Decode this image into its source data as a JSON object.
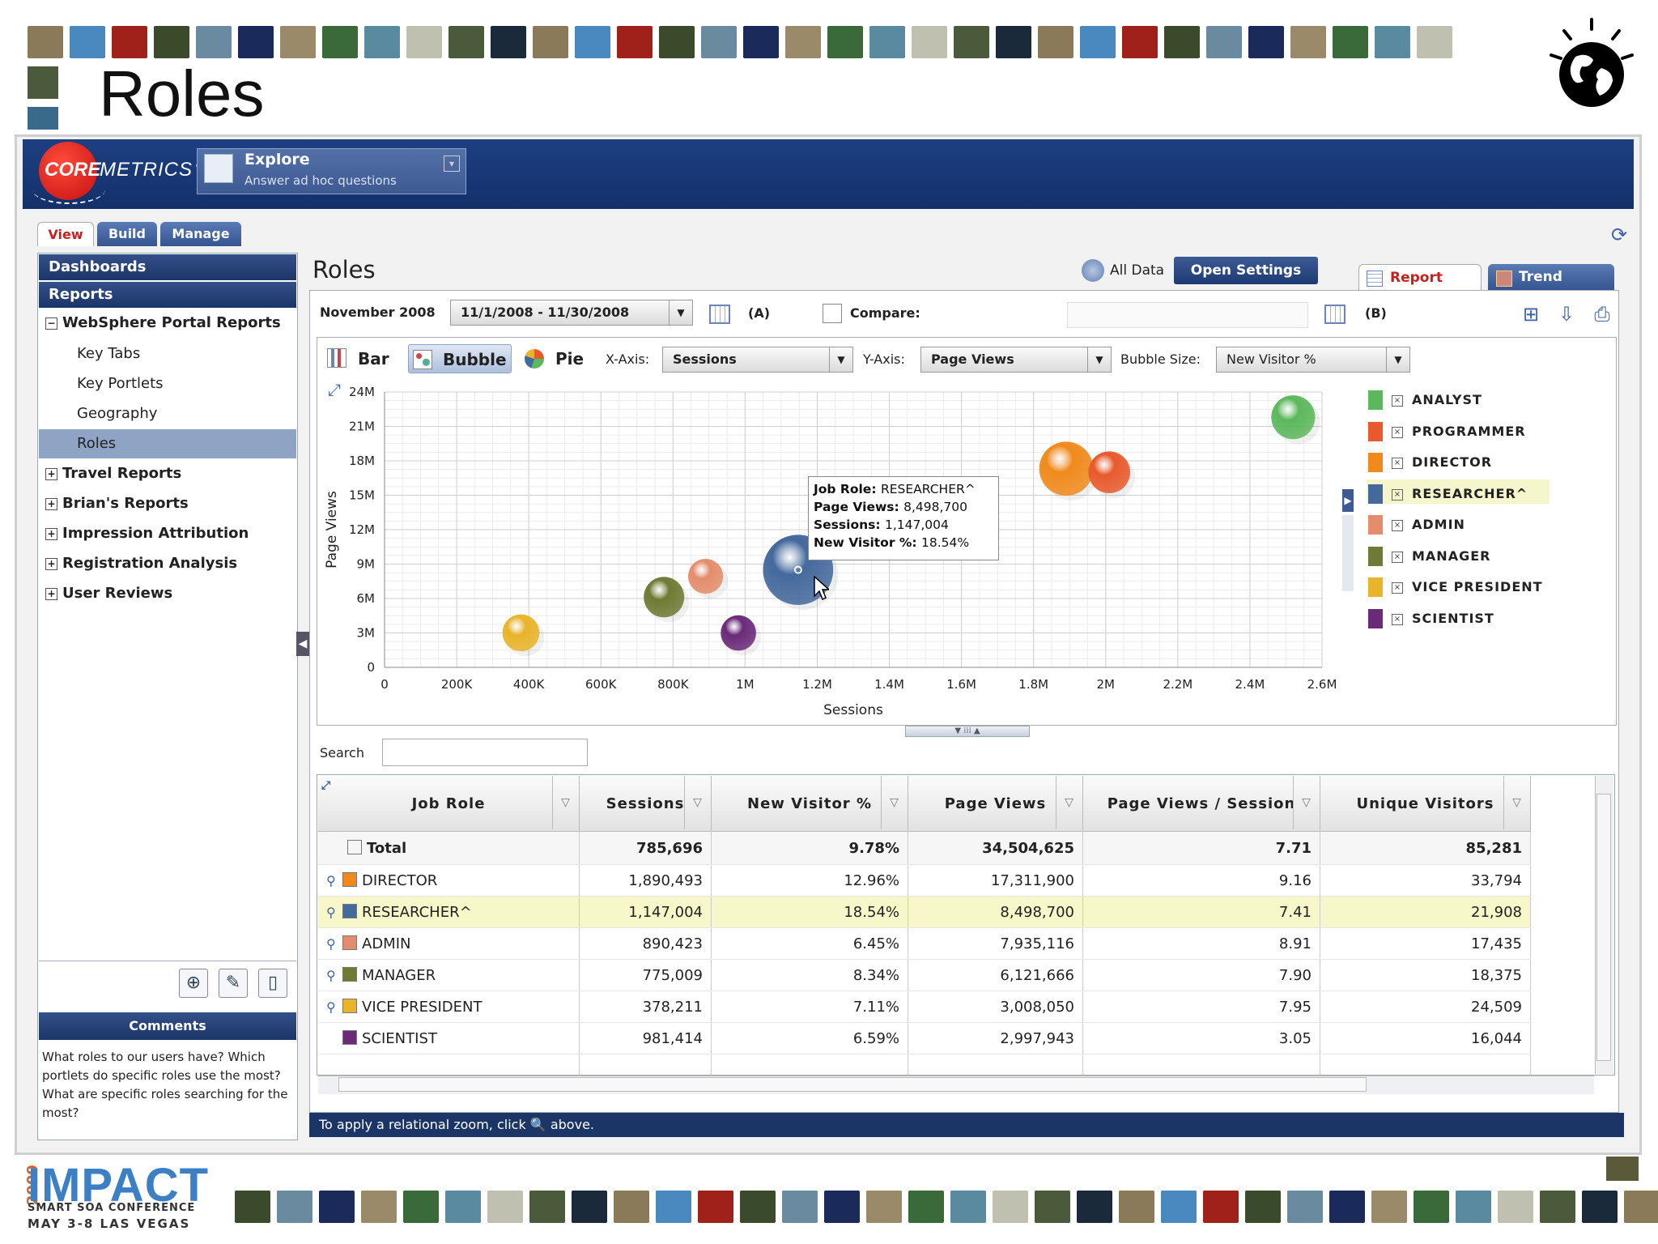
{
  "slide": {
    "title": "Roles"
  },
  "logo": {
    "core": "CORE",
    "metrics": "METRICS",
    "reg": "®"
  },
  "explore": {
    "title": "Explore",
    "subtitle": "Answer ad hoc questions"
  },
  "tabs": [
    "View",
    "Build",
    "Manage"
  ],
  "sidebar": {
    "dashboards": "Dashboards",
    "reports": "Reports",
    "groups": [
      {
        "label": "WebSphere Portal Reports",
        "expanded": true,
        "children": [
          "Key Tabs",
          "Key Portlets",
          "Geography",
          "Roles"
        ]
      },
      {
        "label": "Travel Reports",
        "expanded": false
      },
      {
        "label": "Brian's Reports",
        "expanded": false
      },
      {
        "label": "Impression Attribution",
        "expanded": false
      },
      {
        "label": "Registration Analysis",
        "expanded": false
      },
      {
        "label": "User Reviews",
        "expanded": false
      }
    ],
    "selected": "Roles",
    "comments_title": "Comments",
    "comments_text": "What roles to our users have? Which portlets do specific roles use the most? What are specific roles searching for the most?"
  },
  "main": {
    "title": "Roles",
    "all_data": "All Data",
    "open_settings": "Open Settings",
    "report_tab": "Report",
    "trend_tab": "Trend",
    "period_label": "November 2008",
    "date_range": "11/1/2008 - 11/30/2008",
    "a_label": "(A)",
    "compare_label": "Compare:",
    "b_label": "(B)"
  },
  "chart_controls": {
    "bar": "Bar",
    "bubble": "Bubble",
    "pie": "Pie",
    "x_axis_label": "X-Axis:",
    "x_axis_value": "Sessions",
    "y_axis_label": "Y-Axis:",
    "y_axis_value": "Page Views",
    "bubble_size_label": "Bubble Size:",
    "bubble_size_value": "New Visitor %"
  },
  "chart_data": {
    "type": "scatter",
    "xlabel": "Sessions",
    "ylabel": "Page Views",
    "xlim": [
      0,
      2600000
    ],
    "ylim": [
      0,
      24000000
    ],
    "x_ticks": [
      "0",
      "200K",
      "400K",
      "600K",
      "800K",
      "1M",
      "1.2M",
      "1.4M",
      "1.6M",
      "1.8M",
      "2M",
      "2.2M",
      "2.4M",
      "2.6M"
    ],
    "y_ticks": [
      "0",
      "3M",
      "6M",
      "9M",
      "12M",
      "15M",
      "18M",
      "21M",
      "24M"
    ],
    "series": [
      {
        "name": "ANALYST",
        "color": "#5cb85c",
        "x": 2520000,
        "y": 21800000,
        "size": 9.5
      },
      {
        "name": "PROGRAMMER",
        "color": "#e85a2c",
        "x": 2010000,
        "y": 17000000,
        "size": 8.8
      },
      {
        "name": "DIRECTOR",
        "color": "#f08a1c",
        "x": 1890493,
        "y": 17311900,
        "size": 12.96
      },
      {
        "name": "RESEARCHER^",
        "color": "#44699c",
        "x": 1147004,
        "y": 8498700,
        "size": 18.54
      },
      {
        "name": "ADMIN",
        "color": "#e48d6c",
        "x": 890423,
        "y": 7935116,
        "size": 6.45
      },
      {
        "name": "MANAGER",
        "color": "#6f7a34",
        "x": 775009,
        "y": 6121666,
        "size": 8.34
      },
      {
        "name": "VICE PRESIDENT",
        "color": "#e8b42a",
        "x": 378211,
        "y": 3008050,
        "size": 7.11
      },
      {
        "name": "SCIENTIST",
        "color": "#6a2a78",
        "x": 981414,
        "y": 2997943,
        "size": 6.59
      }
    ],
    "legend_position": "right",
    "grid": true
  },
  "tooltip": {
    "lines": [
      {
        "k": "Job Role",
        "v": "RESEARCHER^"
      },
      {
        "k": "Page Views",
        "v": "8,498,700"
      },
      {
        "k": "Sessions",
        "v": "1,147,004"
      },
      {
        "k": "New Visitor %",
        "v": "18.54%"
      }
    ]
  },
  "search": {
    "label": "Search",
    "value": ""
  },
  "table": {
    "columns": [
      "Job Role",
      "Sessions",
      "New Visitor %",
      "Page Views",
      "Page Views / Session",
      "Unique Visitors"
    ],
    "total": {
      "label": "Total",
      "sessions": "785,696",
      "new_visitor": "9.78%",
      "page_views": "34,504,625",
      "pv_per_session": "7.71",
      "unique": "85,281"
    },
    "rows": [
      {
        "role": "DIRECTOR",
        "color": "#f08a1c",
        "sessions": "1,890,493",
        "new_visitor": "12.96%",
        "page_views": "17,311,900",
        "pv_per_session": "9.16",
        "unique": "33,794",
        "zoom": true
      },
      {
        "role": "RESEARCHER^",
        "color": "#44699c",
        "sessions": "1,147,004",
        "new_visitor": "18.54%",
        "page_views": "8,498,700",
        "pv_per_session": "7.41",
        "unique": "21,908",
        "zoom": true,
        "highlight": true
      },
      {
        "role": "ADMIN",
        "color": "#e48d6c",
        "sessions": "890,423",
        "new_visitor": "6.45%",
        "page_views": "7,935,116",
        "pv_per_session": "8.91",
        "unique": "17,435",
        "zoom": true
      },
      {
        "role": "MANAGER",
        "color": "#6f7a34",
        "sessions": "775,009",
        "new_visitor": "8.34%",
        "page_views": "6,121,666",
        "pv_per_session": "7.90",
        "unique": "18,375",
        "zoom": true
      },
      {
        "role": "VICE PRESIDENT",
        "color": "#e8b42a",
        "sessions": "378,211",
        "new_visitor": "7.11%",
        "page_views": "3,008,050",
        "pv_per_session": "7.95",
        "unique": "24,509",
        "zoom": true
      },
      {
        "role": "SCIENTIST",
        "color": "#6a2a78",
        "sessions": "981,414",
        "new_visitor": "6.59%",
        "page_views": "2,997,943",
        "pv_per_session": "3.05",
        "unique": "16,044",
        "zoom": false
      }
    ]
  },
  "status": {
    "text_before": "To apply a relational zoom, click",
    "text_after": "above."
  },
  "impact": {
    "year": "2009",
    "name": "IMPACT",
    "sub": "SMART SOA CONFERENCE",
    "date": "MAY 3-8  LAS VEGAS"
  }
}
